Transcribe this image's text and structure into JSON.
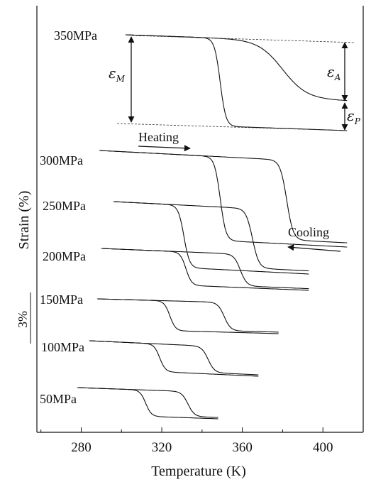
{
  "chart_data": {
    "type": "line",
    "title": "",
    "xlabel": "Temperature (K)",
    "ylabel": "Strain (%)",
    "xlim": [
      258,
      420
    ],
    "x_ticks": [
      280,
      320,
      360,
      400
    ],
    "scale_bar_label": "3%",
    "grid": false,
    "legend": "none",
    "series": [
      {
        "name": "350MPa",
        "x_start": 302,
        "x_end": 412,
        "cool_mid": 349,
        "heat_mid": 380,
        "annotations": {
          "eps_M": "ε",
          "eps_M_sub": "M",
          "eps_A": "ε",
          "eps_A_sub": "A",
          "eps_P": "ε",
          "eps_P_sub": "P"
        }
      },
      {
        "name": "300MPa",
        "x_start": 289,
        "x_end": 412,
        "cool_mid": 349,
        "heat_mid": 382
      },
      {
        "name": "250MPa",
        "x_start": 296,
        "x_end": 393,
        "cool_mid": 331,
        "heat_mid": 365
      },
      {
        "name": "200MPa",
        "x_start": 290,
        "x_end": 393,
        "cool_mid": 332,
        "heat_mid": 359
      },
      {
        "name": "150MPa",
        "x_start": 288,
        "x_end": 378,
        "cool_mid": 324,
        "heat_mid": 351
      },
      {
        "name": "100MPa",
        "x_start": 284,
        "x_end": 368,
        "cool_mid": 319,
        "heat_mid": 343
      },
      {
        "name": "50MPa",
        "x_start": 278,
        "x_end": 348,
        "cool_mid": 312,
        "heat_mid": 333
      }
    ],
    "annotations": {
      "heating": "Heating",
      "cooling": "Cooling"
    }
  }
}
